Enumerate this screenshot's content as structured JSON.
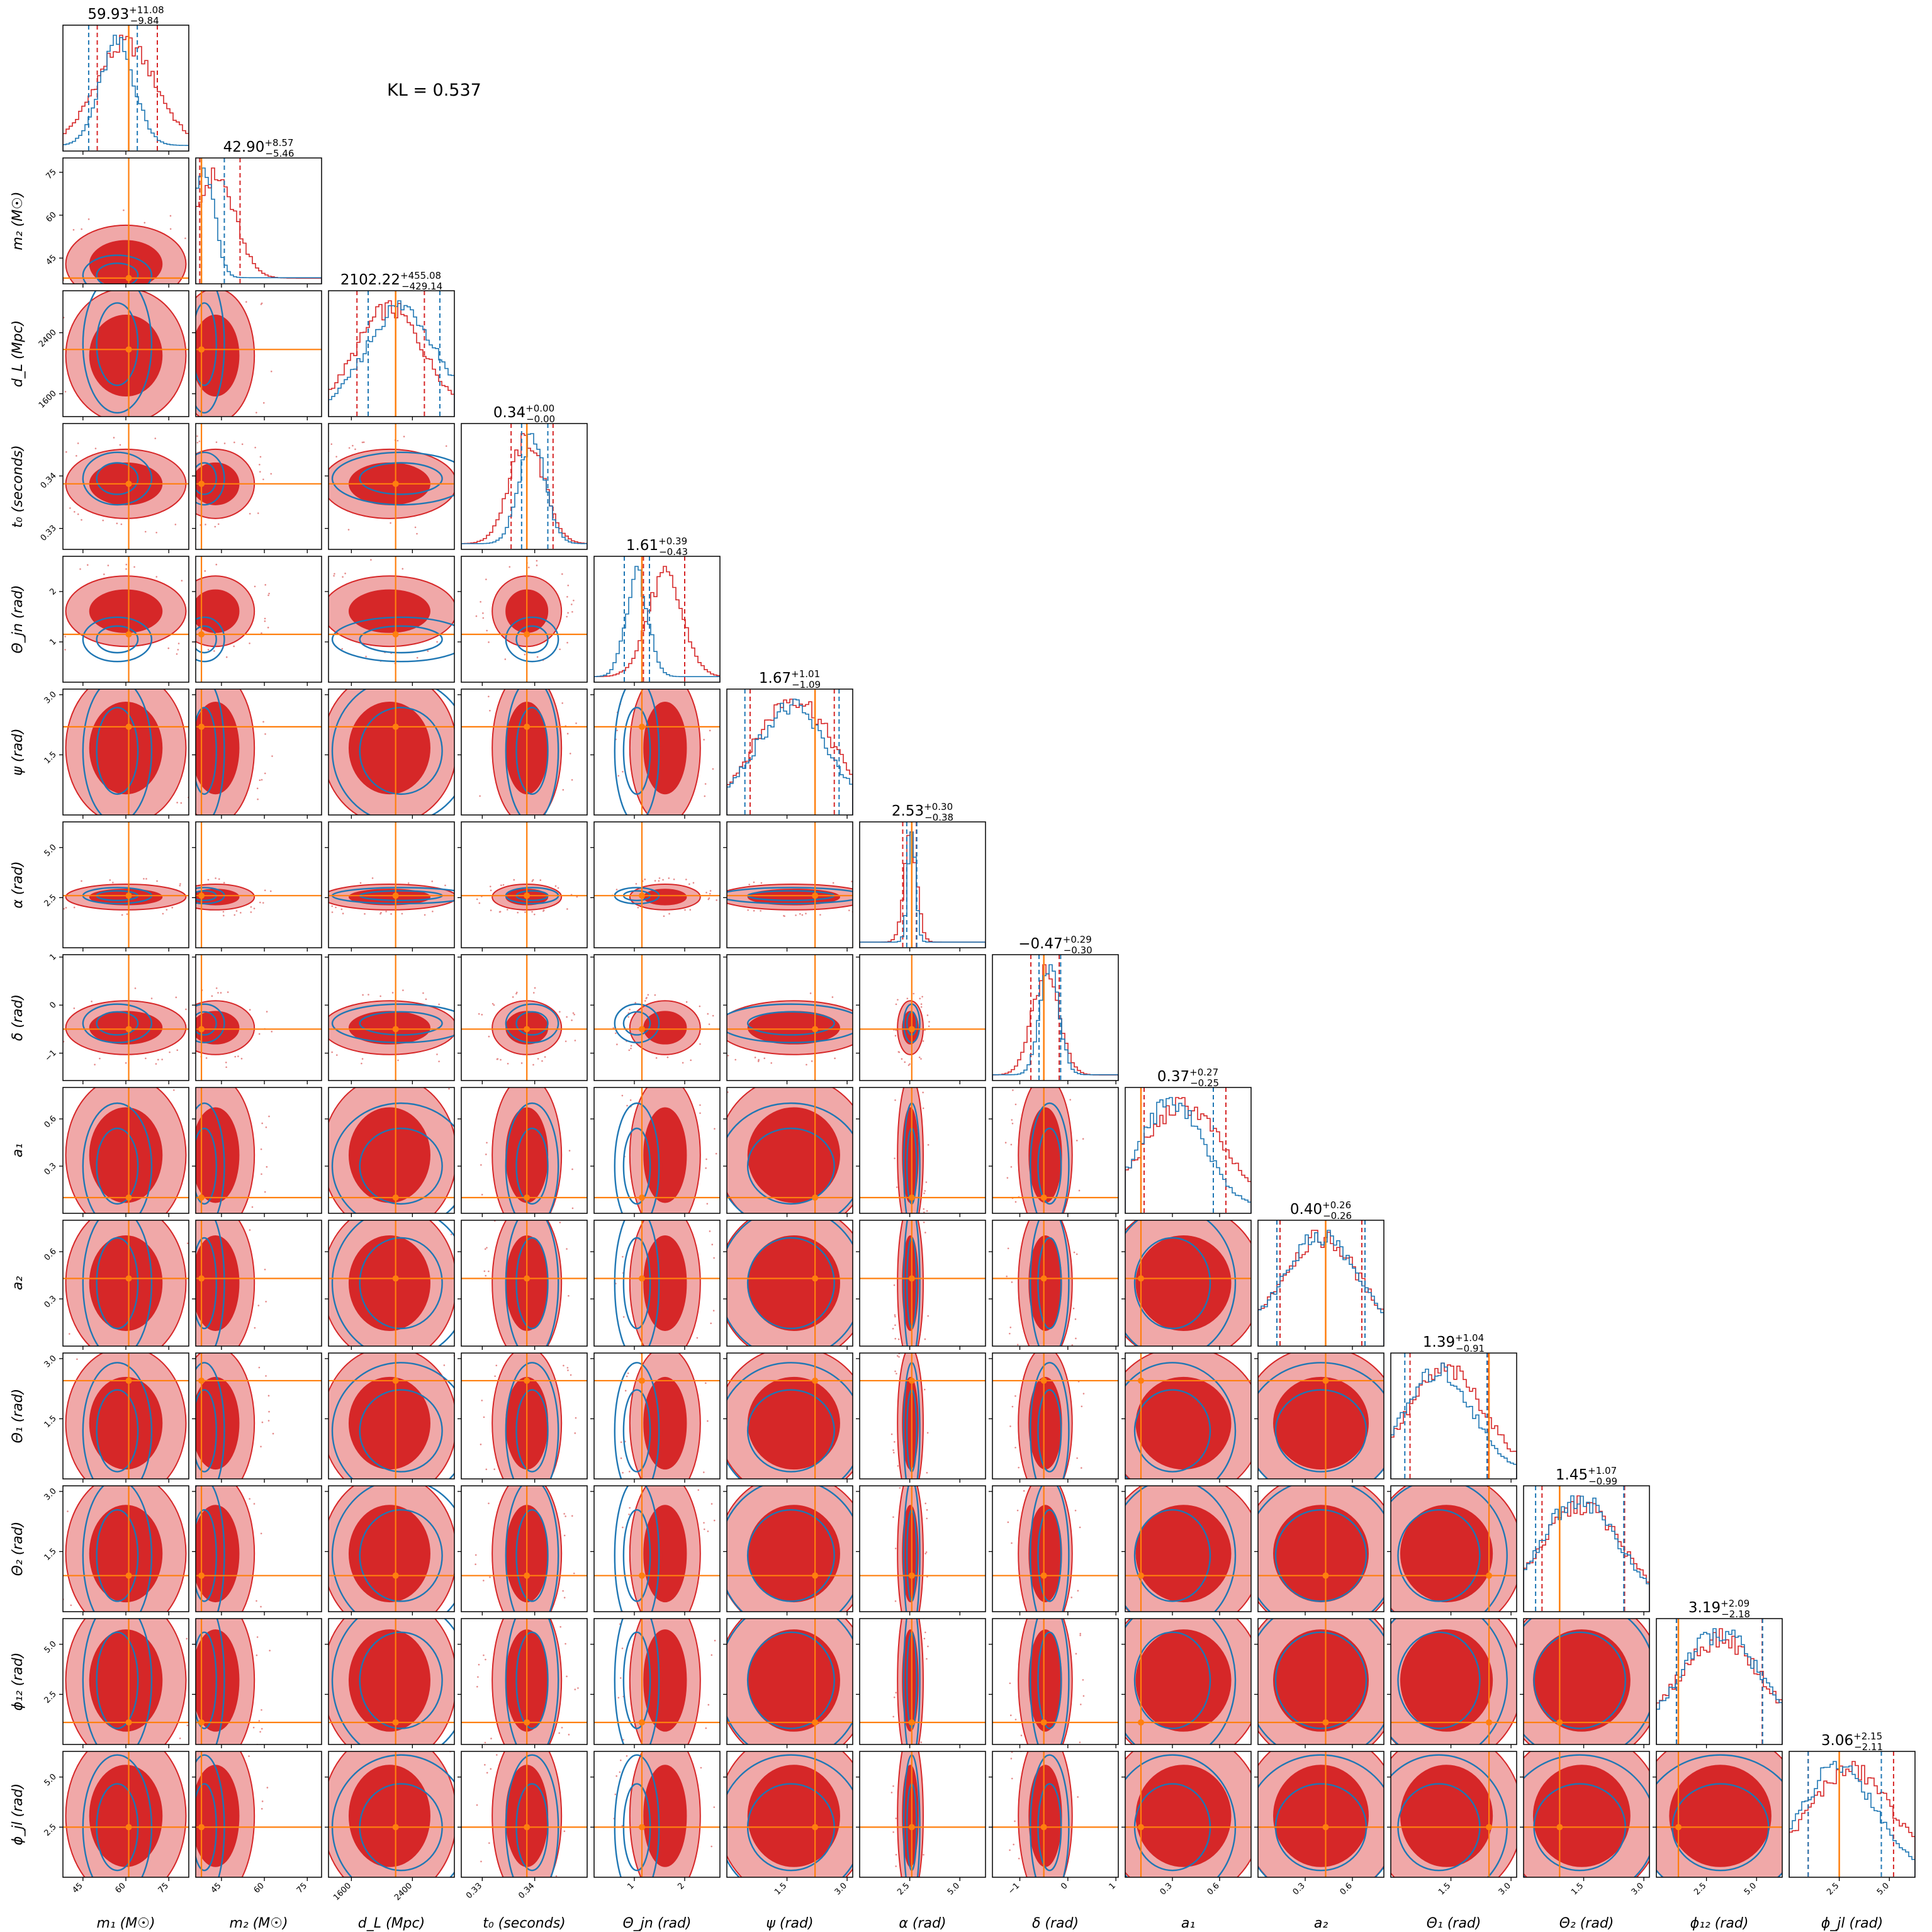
{
  "chart_data": {
    "type": "corner",
    "annotation": "KL = 0.537",
    "colors": {
      "series_a": "#1f77b4",
      "series_b": "#d62728",
      "series_b_light": "#f0a8a8",
      "truth": "#ff7f0e"
    },
    "parameters": [
      {
        "key": "m1",
        "label": "m₁ (M☉)",
        "range": [
          38,
          82
        ],
        "ticks": [
          45,
          60,
          75
        ],
        "tick_labels": [
          "45",
          "60",
          "75"
        ],
        "truth": 61,
        "title_value": "59.93",
        "title_plus": "+11.08",
        "title_minus": "−9.84"
      },
      {
        "key": "m2",
        "label": "m₂ (M☉)",
        "range": [
          36,
          80
        ],
        "ticks": [
          45,
          60,
          75
        ],
        "tick_labels": [
          "45",
          "60",
          "75"
        ],
        "truth": 38,
        "title_value": "42.90",
        "title_plus": "+8.57",
        "title_minus": "−5.46"
      },
      {
        "key": "dL",
        "label": "d_L (Mpc)",
        "range": [
          1300,
          2950
        ],
        "ticks": [
          1600,
          2400
        ],
        "tick_labels": [
          "1600",
          "2400"
        ],
        "truth": 2180,
        "title_value": "2102.22",
        "title_plus": "+455.08",
        "title_minus": "−429.14"
      },
      {
        "key": "t0",
        "label": "t₀ (seconds)",
        "range": [
          0.326,
          0.35
        ],
        "ticks": [
          0.33,
          0.34
        ],
        "tick_labels": [
          "0.33",
          "0.34"
        ],
        "truth": 0.3385,
        "title_value": "0.34",
        "title_plus": "+0.00",
        "title_minus": "−0.00"
      },
      {
        "key": "theta_jn",
        "label": "Θ_jn (rad)",
        "range": [
          0.2,
          2.7
        ],
        "ticks": [
          1,
          2
        ],
        "tick_labels": [
          "1",
          "2"
        ],
        "truth": 1.15,
        "title_value": "1.61",
        "title_plus": "+0.39",
        "title_minus": "−0.43"
      },
      {
        "key": "psi",
        "label": "ψ (rad)",
        "range": [
          0.0,
          3.14
        ],
        "ticks": [
          1.5,
          3.0
        ],
        "tick_labels": [
          "1.5",
          "3.0"
        ],
        "truth": 2.2,
        "title_value": "1.67",
        "title_plus": "+1.01",
        "title_minus": "−1.09"
      },
      {
        "key": "alpha",
        "label": "α (rad)",
        "range": [
          0.0,
          6.28
        ],
        "ticks": [
          2.5,
          5.0
        ],
        "tick_labels": [
          "2.5",
          "5.0"
        ],
        "truth": 2.6,
        "title_value": "2.53",
        "title_plus": "+0.30",
        "title_minus": "−0.38"
      },
      {
        "key": "delta",
        "label": "δ (rad)",
        "range": [
          -1.57,
          1.05
        ],
        "ticks": [
          -1,
          0,
          1
        ],
        "tick_labels": [
          "−1",
          "0",
          "1"
        ],
        "truth": -0.5,
        "title_value": "−0.47",
        "title_plus": "+0.29",
        "title_minus": "−0.30"
      },
      {
        "key": "a1",
        "label": "a₁",
        "range": [
          0.0,
          0.8
        ],
        "ticks": [
          0.3,
          0.6
        ],
        "tick_labels": [
          "0.3",
          "0.6"
        ],
        "truth": 0.1,
        "title_value": "0.37",
        "title_plus": "+0.27",
        "title_minus": "−0.25"
      },
      {
        "key": "a2",
        "label": "a₂",
        "range": [
          0.0,
          0.8
        ],
        "ticks": [
          0.3,
          0.6
        ],
        "tick_labels": [
          "0.3",
          "0.6"
        ],
        "truth": 0.43,
        "title_value": "0.40",
        "title_plus": "+0.26",
        "title_minus": "−0.26"
      },
      {
        "key": "theta1",
        "label": "Θ₁ (rad)",
        "range": [
          0.0,
          3.14
        ],
        "ticks": [
          1.5,
          3.0
        ],
        "tick_labels": [
          "1.5",
          "3.0"
        ],
        "truth": 2.45,
        "title_value": "1.39",
        "title_plus": "+1.04",
        "title_minus": "−0.91"
      },
      {
        "key": "theta2",
        "label": "Θ₂ (rad)",
        "range": [
          0.0,
          3.14
        ],
        "ticks": [
          1.5,
          3.0
        ],
        "tick_labels": [
          "1.5",
          "3.0"
        ],
        "truth": 0.9,
        "title_value": "1.45",
        "title_plus": "+1.07",
        "title_minus": "−0.99"
      },
      {
        "key": "phi12",
        "label": "ϕ₁₂ (rad)",
        "range": [
          0.0,
          6.28
        ],
        "ticks": [
          2.5,
          5.0
        ],
        "tick_labels": [
          "2.5",
          "5.0"
        ],
        "truth": 1.1,
        "title_value": "3.19",
        "title_plus": "+2.09",
        "title_minus": "−2.18"
      },
      {
        "key": "phi_jl",
        "label": "ϕ_jl (rad)",
        "range": [
          0.0,
          6.28
        ],
        "ticks": [
          2.5,
          5.0
        ],
        "tick_labels": [
          "2.5",
          "5.0"
        ],
        "truth": 2.5,
        "title_value": "3.06",
        "title_plus": "+2.15",
        "title_minus": "−2.11"
      }
    ],
    "marginals": {
      "m1": {
        "a": {
          "mean": 57,
          "sd": 6
        },
        "b": {
          "mean": 60,
          "sd": 10.5
        },
        "q_a": [
          47,
          64
        ],
        "q_b": [
          50,
          71
        ]
      },
      "m2": {
        "a": {
          "mean": 39,
          "sd": 3.5
        },
        "b": {
          "mean": 42.9,
          "sd": 6.8
        },
        "q_a": [
          38,
          46
        ],
        "q_b": [
          37.4,
          51.5
        ]
      },
      "dL": {
        "a": {
          "mean": 2250,
          "sd": 450
        },
        "b": {
          "mean": 2100,
          "sd": 440
        },
        "q_a": [
          1820,
          2760
        ],
        "q_b": [
          1673,
          2557
        ]
      },
      "t0": {
        "a": {
          "mean": 0.3395,
          "sd": 0.0025
        },
        "b": {
          "mean": 0.3385,
          "sd": 0.0033
        },
        "q_a": [
          0.3375,
          0.3425
        ],
        "q_b": [
          0.3355,
          0.3435
        ]
      },
      "theta_jn": {
        "a": {
          "mean": 1.05,
          "sd": 0.22
        },
        "b": {
          "mean": 1.61,
          "sd": 0.35
        },
        "q_a": [
          0.8,
          1.3
        ],
        "q_b": [
          1.18,
          2.0
        ]
      },
      "psi": {
        "a": {
          "mean": 1.6,
          "sd": 0.9
        },
        "b": {
          "mean": 1.67,
          "sd": 0.95
        },
        "q_a": [
          0.45,
          2.8
        ],
        "q_b": [
          0.58,
          2.68
        ]
      },
      "alpha": {
        "a": {
          "mean": 2.6,
          "sd": 0.2
        },
        "b": {
          "mean": 2.53,
          "sd": 0.32
        },
        "q_a": [
          2.35,
          2.85
        ],
        "q_b": [
          2.15,
          2.83
        ]
      },
      "delta": {
        "a": {
          "mean": -0.38,
          "sd": 0.2
        },
        "b": {
          "mean": -0.47,
          "sd": 0.28
        },
        "q_a": [
          -0.6,
          -0.15
        ],
        "q_b": [
          -0.77,
          -0.18
        ]
      },
      "a1": {
        "a": {
          "mean": 0.3,
          "sd": 0.2
        },
        "b": {
          "mean": 0.37,
          "sd": 0.25
        },
        "q_a": [
          0.1,
          0.56
        ],
        "q_b": [
          0.12,
          0.64
        ]
      },
      "a2": {
        "a": {
          "mean": 0.4,
          "sd": 0.24
        },
        "b": {
          "mean": 0.4,
          "sd": 0.25
        },
        "q_a": [
          0.12,
          0.68
        ],
        "q_b": [
          0.14,
          0.66
        ]
      },
      "theta1": {
        "a": {
          "mean": 1.2,
          "sd": 0.85
        },
        "b": {
          "mean": 1.39,
          "sd": 0.95
        },
        "q_a": [
          0.35,
          2.4
        ],
        "q_b": [
          0.48,
          2.43
        ]
      },
      "theta2": {
        "a": {
          "mean": 1.4,
          "sd": 0.95
        },
        "b": {
          "mean": 1.45,
          "sd": 1.0
        },
        "q_a": [
          0.3,
          2.5
        ],
        "q_b": [
          0.46,
          2.52
        ]
      },
      "phi12": {
        "a": {
          "mean": 3.2,
          "sd": 2.0
        },
        "b": {
          "mean": 3.19,
          "sd": 2.1
        },
        "q_a": [
          1.0,
          5.3
        ],
        "q_b": [
          1.01,
          5.28
        ]
      },
      "phi_jl": {
        "a": {
          "mean": 2.5,
          "sd": 1.8
        },
        "b": {
          "mean": 3.06,
          "sd": 2.1
        },
        "q_a": [
          0.95,
          4.6
        ],
        "q_b": [
          0.95,
          5.21
        ]
      }
    }
  }
}
